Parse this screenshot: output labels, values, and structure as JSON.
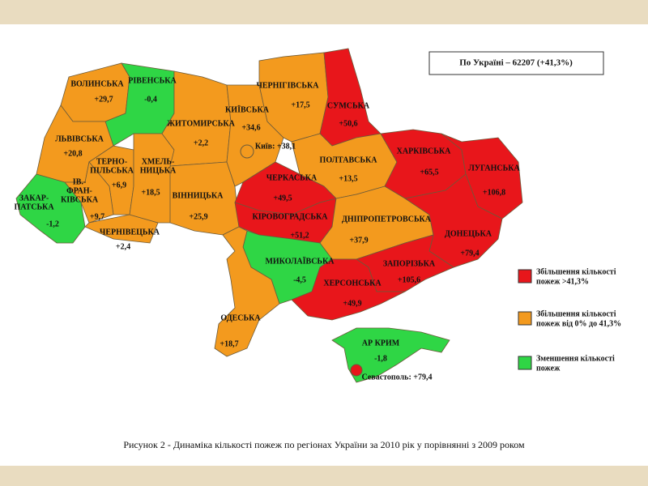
{
  "header": {
    "title": "По Україні – 62207 (+41,3%)"
  },
  "regions": [
    {
      "name": [
        "ВОЛИНСЬКА"
      ],
      "value": "+29,7",
      "color": "#f39a1e"
    },
    {
      "name": [
        "РІВЕНСЬКА"
      ],
      "value": "-0,4",
      "color": "#2fd645"
    },
    {
      "name": [
        "ЛЬВІВСЬКА"
      ],
      "value": "+20,8",
      "color": "#f39a1e"
    },
    {
      "name": [
        "ТЕРНО-",
        "ПІЛЬСЬКА"
      ],
      "value": "+6,9",
      "color": "#f39a1e"
    },
    {
      "name": [
        "ІВ.-",
        "ФРАН-",
        "КІВСЬКА"
      ],
      "value": "+9,7",
      "color": "#f39a1e"
    },
    {
      "name": [
        "ЗАКАР-",
        "ПАТСЬКА"
      ],
      "value": "-1,2",
      "color": "#2fd645"
    },
    {
      "name": [
        "ЧЕРНІВЕЦЬКА"
      ],
      "value": "+2,4",
      "color": "#f39a1e"
    },
    {
      "name": [
        "ХМЕЛЬ-",
        "НИЦЬКА"
      ],
      "value": "+18,5",
      "color": "#f39a1e"
    },
    {
      "name": [
        "ЖИТОМИРСЬКА"
      ],
      "value": "+2,2",
      "color": "#f39a1e"
    },
    {
      "name": [
        "ВІННИЦЬКА"
      ],
      "value": "+25,9",
      "color": "#f39a1e"
    },
    {
      "name": [
        "КИЇВСЬКА"
      ],
      "value": "+34,6",
      "color": "#f39a1e"
    },
    {
      "name": [
        "ЧЕРНІГІВСЬКА"
      ],
      "value": "+17,5",
      "color": "#f39a1e"
    },
    {
      "name": [
        "СУМСЬКА"
      ],
      "value": "+50,6",
      "color": "#e8161b"
    },
    {
      "name": [
        "ПОЛТАВСЬКА"
      ],
      "value": "+13,5",
      "color": "#f39a1e"
    },
    {
      "name": [
        "ЧЕРКАСЬКА"
      ],
      "value": "+49,5",
      "color": "#e8161b"
    },
    {
      "name": [
        "КІРОВОГРАДСЬКА"
      ],
      "value": "+51,2",
      "color": "#e8161b"
    },
    {
      "name": [
        "ХАРКІВСЬКА"
      ],
      "value": "+65,5",
      "color": "#e8161b"
    },
    {
      "name": [
        "ЛУГАНСЬКА"
      ],
      "value": "+106,8",
      "color": "#e8161b"
    },
    {
      "name": [
        "ДНІПРОПЕТРОВСЬКА"
      ],
      "value": "+37,9",
      "color": "#f39a1e"
    },
    {
      "name": [
        "ДОНЕЦЬКА"
      ],
      "value": "+79,4",
      "color": "#e8161b"
    },
    {
      "name": [
        "ЗАПОРІЗЬКА"
      ],
      "value": "+105,6",
      "color": "#e8161b"
    },
    {
      "name": [
        "МИКОЛАЇВСЬКА"
      ],
      "value": "-4,5",
      "color": "#2fd645"
    },
    {
      "name": [
        "ХЕРСОНСЬКА"
      ],
      "value": "+49,9",
      "color": "#e8161b"
    },
    {
      "name": [
        "ОДЕСЬКА"
      ],
      "value": "+18,7",
      "color": "#f39a1e"
    },
    {
      "name": [
        "АР КРИМ"
      ],
      "value": "-1,8",
      "color": "#2fd645"
    }
  ],
  "cities": [
    {
      "label": "Київ: +38,1",
      "color": "#f39a1e"
    },
    {
      "label": "Севастополь: +79,4",
      "color": "#e8161b"
    }
  ],
  "legend": [
    {
      "label": [
        "Збільшення кількості",
        "пожеж >41,3%"
      ],
      "color": "#e8161b"
    },
    {
      "label": [
        "Збільшення кількості",
        "пожеж від 0% до 41,3%"
      ],
      "color": "#f39a1e"
    },
    {
      "label": [
        "Зменшення кількості",
        "пожеж"
      ],
      "color": "#2fd645"
    }
  ],
  "caption": "Рисунок 2 - Динаміка кількості пожеж по регіонах України за 2010 рік у порівнянні з 2009 роком"
}
